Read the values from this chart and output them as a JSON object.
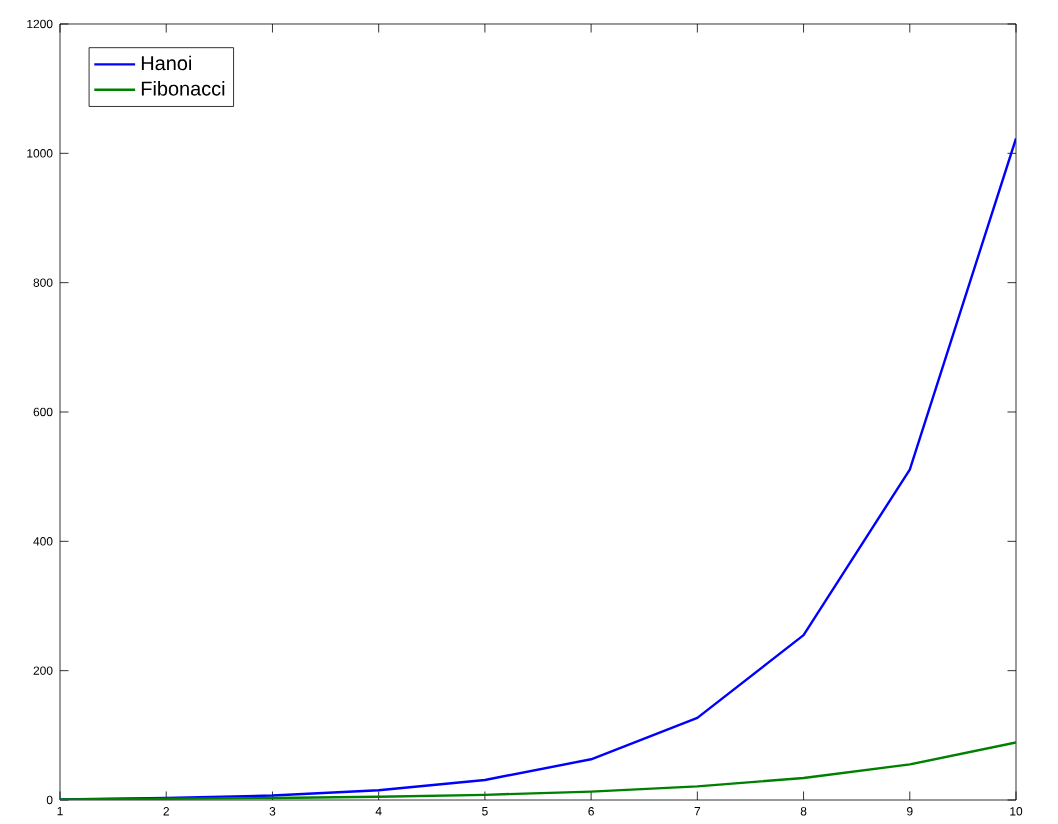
{
  "chart_data": {
    "type": "line",
    "x": [
      1,
      2,
      3,
      4,
      5,
      6,
      7,
      8,
      9,
      10
    ],
    "series": [
      {
        "name": "Hanoi",
        "color": "#0000ff",
        "values": [
          1,
          3,
          7,
          15,
          31,
          63,
          127,
          255,
          511,
          1023
        ]
      },
      {
        "name": "Fibonacci",
        "color": "#008000",
        "values": [
          1,
          2,
          3,
          5,
          8,
          13,
          21,
          34,
          55,
          89
        ]
      }
    ],
    "xlim": [
      1,
      10
    ],
    "ylim": [
      0,
      1200
    ],
    "xticks": [
      1,
      2,
      3,
      4,
      5,
      6,
      7,
      8,
      9,
      10
    ],
    "yticks": [
      0,
      200,
      400,
      600,
      800,
      1000,
      1200
    ],
    "legend": "top left",
    "grid": false,
    "marker": "none",
    "line_style": "solid"
  }
}
